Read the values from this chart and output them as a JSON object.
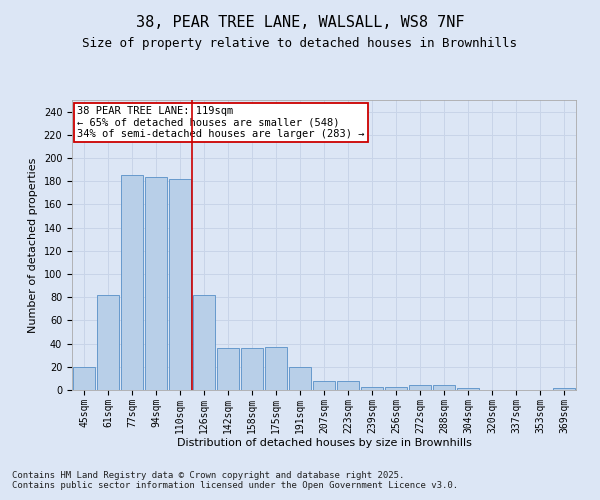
{
  "title1": "38, PEAR TREE LANE, WALSALL, WS8 7NF",
  "title2": "Size of property relative to detached houses in Brownhills",
  "xlabel": "Distribution of detached houses by size in Brownhills",
  "ylabel": "Number of detached properties",
  "categories": [
    "45sqm",
    "61sqm",
    "77sqm",
    "94sqm",
    "110sqm",
    "126sqm",
    "142sqm",
    "158sqm",
    "175sqm",
    "191sqm",
    "207sqm",
    "223sqm",
    "239sqm",
    "256sqm",
    "272sqm",
    "288sqm",
    "304sqm",
    "320sqm",
    "337sqm",
    "353sqm",
    "369sqm"
  ],
  "values": [
    20,
    82,
    185,
    184,
    182,
    82,
    36,
    36,
    37,
    20,
    8,
    8,
    3,
    3,
    4,
    4,
    2,
    0,
    0,
    0,
    2
  ],
  "bar_color": "#b8cfe8",
  "bar_edge_color": "#6699cc",
  "vline_color": "#cc0000",
  "vline_pos": 4.5,
  "annotation_text": "38 PEAR TREE LANE: 119sqm\n← 65% of detached houses are smaller (548)\n34% of semi-detached houses are larger (283) →",
  "annotation_box_color": "#ffffff",
  "annotation_box_edge": "#cc0000",
  "ylim": [
    0,
    250
  ],
  "yticks": [
    0,
    20,
    40,
    60,
    80,
    100,
    120,
    140,
    160,
    180,
    200,
    220,
    240
  ],
  "grid_color": "#c8d4e8",
  "bg_color": "#dce6f5",
  "footer": "Contains HM Land Registry data © Crown copyright and database right 2025.\nContains public sector information licensed under the Open Government Licence v3.0.",
  "title_fontsize": 11,
  "subtitle_fontsize": 9,
  "axis_label_fontsize": 8,
  "tick_fontsize": 7,
  "annotation_fontsize": 7.5,
  "footer_fontsize": 6.5
}
